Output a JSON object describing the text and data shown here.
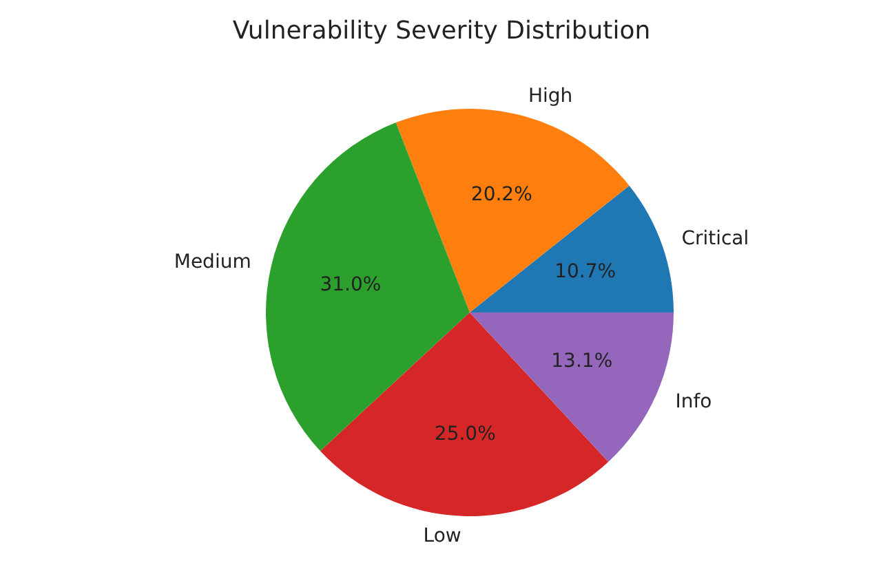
{
  "chart_data": {
    "type": "pie",
    "title": "Vulnerability Severity Distribution",
    "categories": [
      "Critical",
      "High",
      "Medium",
      "Low",
      "Info"
    ],
    "values": [
      10.7,
      20.2,
      31.0,
      25.0,
      13.1
    ],
    "value_labels": [
      "10.7%",
      "20.2%",
      "31.0%",
      "25.0%",
      "13.1%"
    ],
    "colors": [
      "#1f77b4",
      "#ff7f0e",
      "#2ca02c",
      "#d62728",
      "#9467bd"
    ],
    "legend": false
  }
}
